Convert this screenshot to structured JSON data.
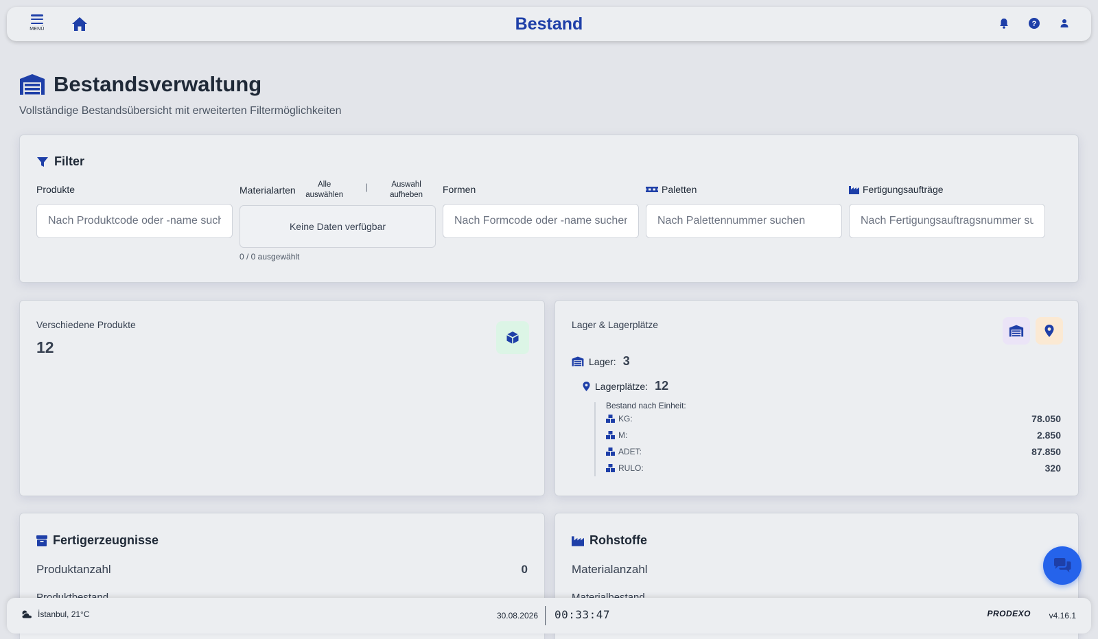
{
  "header": {
    "menu_label": "MENÜ",
    "title": "Bestand"
  },
  "page": {
    "title": "Bestandsverwaltung",
    "subtitle": "Vollständige Bestandsübersicht mit erweiterten Filtermöglichkeiten"
  },
  "filter": {
    "title": "Filter",
    "products": {
      "label": "Produkte",
      "placeholder": "Nach Produktcode oder -name suchen"
    },
    "materials": {
      "label": "Materialarten",
      "select_all": "Alle auswählen",
      "separator": "|",
      "clear": "Auswahl aufheben",
      "empty": "Keine Daten verfügbar",
      "count": "0 / 0 ausgewählt"
    },
    "forms": {
      "label": "Formen",
      "placeholder": "Nach Formcode oder -name suchen"
    },
    "pallets": {
      "label": "Paletten",
      "placeholder": "Nach Palettennummer suchen"
    },
    "orders": {
      "label": "Fertigungsaufträge",
      "placeholder": "Nach Fertigungsauftragsnummer suchen"
    }
  },
  "products_card": {
    "label": "Verschiedene Produkte",
    "value": "12"
  },
  "warehouse_card": {
    "label": "Lager & Lagerplätze",
    "lager_label": "Lager:",
    "lager_value": "3",
    "places_label": "Lagerplätze:",
    "places_value": "12",
    "units_title": "Bestand nach Einheit:",
    "units": [
      {
        "name": "KG:",
        "value": "78.050"
      },
      {
        "name": "M:",
        "value": "2.850"
      },
      {
        "name": "ADET:",
        "value": "87.850"
      },
      {
        "name": "RULO:",
        "value": "320"
      }
    ]
  },
  "finished_card": {
    "title": "Fertigerzeugnisse",
    "count_label": "Produktanzahl",
    "count_value": "0",
    "stock_label": "Produktbestand"
  },
  "raw_card": {
    "title": "Rohstoffe",
    "count_label": "Materialanzahl",
    "stock_label": "Materialbestand"
  },
  "footer": {
    "weather": "İstanbul, 21°C",
    "date": "30.08.2026",
    "time": "00:33:47",
    "brand": "PRODEXO",
    "version": "v4.16.1"
  },
  "colors": {
    "accent": "#1e3fa8",
    "chat": "#2563eb",
    "tile_green": "#dcf5e6",
    "tile_purple": "#ebe4f7",
    "tile_orange": "#fbe9d3"
  }
}
